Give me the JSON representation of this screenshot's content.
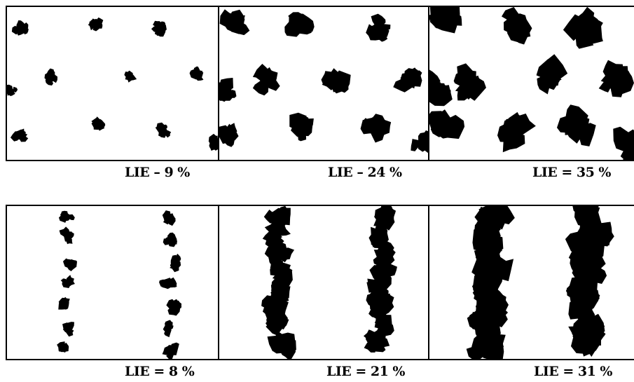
{
  "rows": [
    {
      "id": "top",
      "arrangement": "scattered",
      "panels": [
        {
          "caption": "LIE – 9 %",
          "density": "low"
        },
        {
          "caption": "LIE – 24 %",
          "density": "medium"
        },
        {
          "caption": "LIE = 35 %",
          "density": "high"
        }
      ]
    },
    {
      "id": "bottom",
      "arrangement": "rows",
      "panels": [
        {
          "caption": "LIE = 8 %",
          "density": "low"
        },
        {
          "caption": "LIE = 21 %",
          "density": "medium"
        },
        {
          "caption": "LIE = 31 %",
          "density": "high"
        }
      ]
    }
  ],
  "colors": {
    "foliage": "#000000",
    "background": "#ffffff",
    "border": "#000000"
  }
}
